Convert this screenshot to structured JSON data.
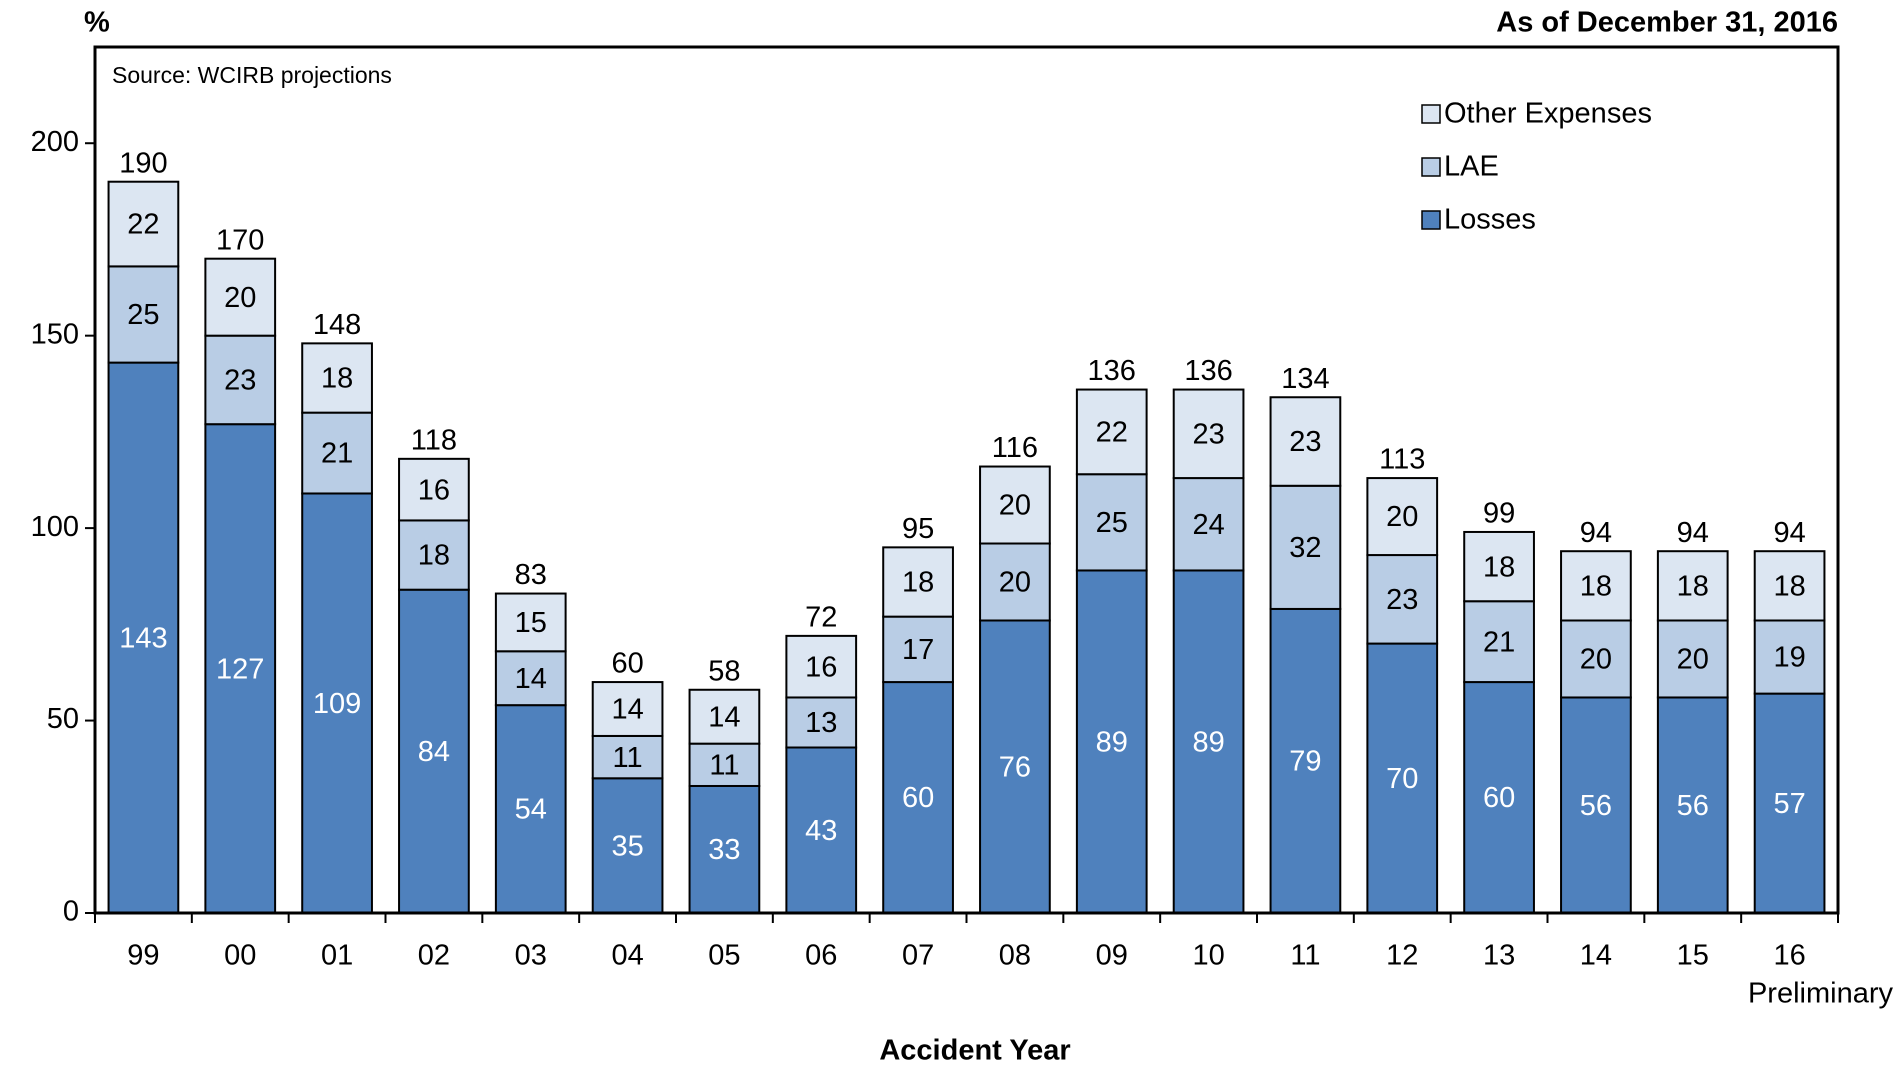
{
  "chart_data": {
    "type": "stacked_bar",
    "y_unit_label": "%",
    "as_of": "As of December 31, 2016",
    "source": "Source: WCIRB projections",
    "x_label": "Accident Year",
    "last_category_note": "Preliminary",
    "categories": [
      "99",
      "00",
      "01",
      "02",
      "03",
      "04",
      "05",
      "06",
      "07",
      "08",
      "09",
      "10",
      "11",
      "12",
      "13",
      "14",
      "15",
      "16"
    ],
    "series": [
      {
        "name": "Losses",
        "color": "#4f81bd",
        "label_color": "#ffffff",
        "values": [
          143,
          127,
          109,
          84,
          54,
          35,
          33,
          43,
          60,
          76,
          89,
          89,
          79,
          70,
          60,
          56,
          56,
          57
        ]
      },
      {
        "name": "LAE",
        "color": "#b9cde5",
        "label_color": "#000000",
        "values": [
          25,
          23,
          21,
          18,
          14,
          11,
          11,
          13,
          17,
          20,
          25,
          24,
          32,
          23,
          21,
          20,
          20,
          19
        ]
      },
      {
        "name": "Other Expenses",
        "color": "#dce6f2",
        "label_color": "#000000",
        "values": [
          22,
          20,
          18,
          16,
          15,
          14,
          14,
          16,
          18,
          20,
          22,
          23,
          23,
          20,
          18,
          18,
          18,
          18
        ]
      }
    ],
    "totals": [
      190,
      170,
      148,
      118,
      83,
      60,
      58,
      72,
      95,
      116,
      136,
      136,
      134,
      113,
      99,
      94,
      94,
      94
    ],
    "ylim": [
      0,
      225
    ],
    "yticks": [
      0,
      50,
      100,
      150,
      200
    ],
    "grid": false,
    "legend": "top-right"
  }
}
